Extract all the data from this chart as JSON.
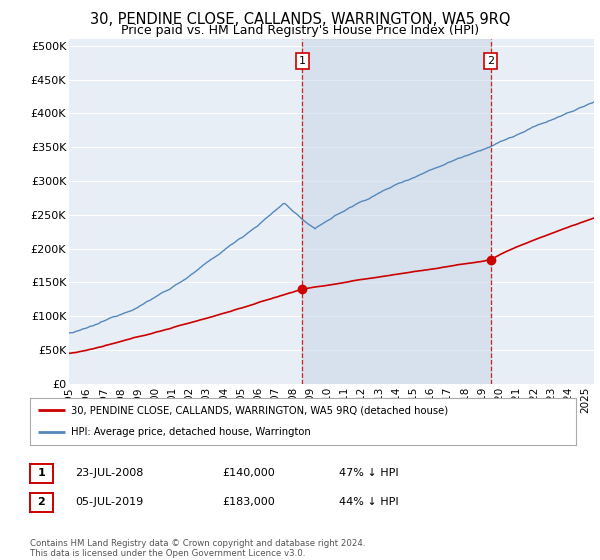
{
  "title": "30, PENDINE CLOSE, CALLANDS, WARRINGTON, WA5 9RQ",
  "subtitle": "Price paid vs. HM Land Registry's House Price Index (HPI)",
  "title_fontsize": 10.5,
  "subtitle_fontsize": 9,
  "background_color": "#ffffff",
  "plot_background": "#e8eef5",
  "grid_color": "#ffffff",
  "ylabel_ticks": [
    "£0",
    "£50K",
    "£100K",
    "£150K",
    "£200K",
    "£250K",
    "£300K",
    "£350K",
    "£400K",
    "£450K",
    "£500K"
  ],
  "ytick_values": [
    0,
    50000,
    100000,
    150000,
    200000,
    250000,
    300000,
    350000,
    400000,
    450000,
    500000
  ],
  "ylim": [
    0,
    510000
  ],
  "xlim_start": 1995.0,
  "xlim_end": 2025.5,
  "sale1_x": 2008.55,
  "sale1_y": 140000,
  "sale2_x": 2019.5,
  "sale2_y": 183000,
  "vline1_x": 2008.55,
  "vline2_x": 2019.5,
  "legend_line1": "30, PENDINE CLOSE, CALLANDS, WARRINGTON, WA5 9RQ (detached house)",
  "legend_line2": "HPI: Average price, detached house, Warrington",
  "legend_line1_color": "#cc0000",
  "legend_line2_color": "#5588bb",
  "shade_color": "#ccd9e8",
  "table_row1": [
    "1",
    "23-JUL-2008",
    "£140,000",
    "47% ↓ HPI"
  ],
  "table_row2": [
    "2",
    "05-JUL-2019",
    "£183,000",
    "44% ↓ HPI"
  ],
  "footer": "Contains HM Land Registry data © Crown copyright and database right 2024.\nThis data is licensed under the Open Government Licence v3.0.",
  "xtick_years": [
    1995,
    1996,
    1997,
    1998,
    1999,
    2000,
    2001,
    2002,
    2003,
    2004,
    2005,
    2006,
    2007,
    2008,
    2009,
    2010,
    2011,
    2012,
    2013,
    2014,
    2015,
    2016,
    2017,
    2018,
    2019,
    2020,
    2021,
    2022,
    2023,
    2024,
    2025
  ]
}
